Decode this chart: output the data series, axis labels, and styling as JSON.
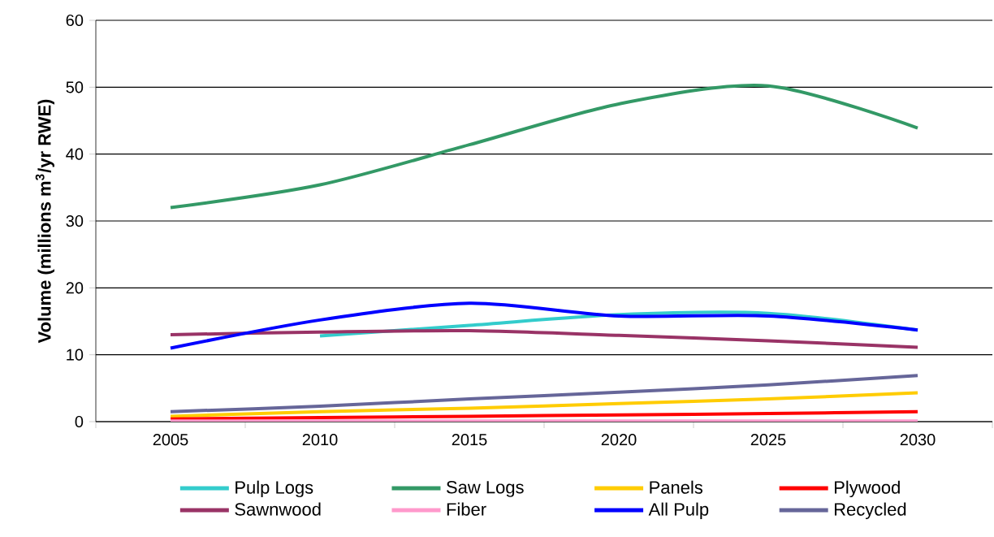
{
  "chart_data": {
    "type": "line",
    "ylabel": "Volume (millions m$^{3}$/yr RWE)",
    "categories": [
      "2005",
      "2010",
      "2015",
      "2020",
      "2025",
      "2030"
    ],
    "ylim": [
      0,
      60
    ],
    "yticks": [
      0,
      10,
      20,
      30,
      40,
      50,
      60
    ],
    "grid": "y",
    "legend": "bottom",
    "marker": "none",
    "line_style": "solid",
    "series": [
      {
        "name": "Pulp Logs",
        "color": "#33cccc",
        "values": [
          null,
          12.8,
          14.4,
          16,
          16.2,
          13.7
        ]
      },
      {
        "name": "Saw Logs",
        "color": "#339966",
        "values": [
          32,
          35.4,
          41.4,
          47.5,
          50.2,
          43.9
        ]
      },
      {
        "name": "Panels",
        "color": "#ffcc00",
        "values": [
          0.8,
          1.5,
          2,
          2.7,
          3.4,
          4.3
        ]
      },
      {
        "name": "Plywood",
        "color": "#ff0000",
        "values": [
          0.4,
          0.6,
          0.8,
          1.0,
          1.2,
          1.5
        ]
      },
      {
        "name": "Sawnwood",
        "color": "#993366",
        "values": [
          13,
          13.4,
          13.6,
          12.9,
          12.1,
          11.1
        ]
      },
      {
        "name": "Fiber",
        "color": "#ff99cc",
        "values": [
          0.1,
          0.1,
          0.1,
          0.1,
          0.1,
          0.1
        ]
      },
      {
        "name": "All Pulp",
        "color": "#0000ff",
        "values": [
          11,
          15.2,
          17.7,
          15.8,
          15.8,
          13.7
        ]
      },
      {
        "name": "Recycled",
        "color": "#666699",
        "values": [
          1.5,
          2.3,
          3.4,
          4.4,
          5.5,
          6.9
        ]
      }
    ]
  }
}
